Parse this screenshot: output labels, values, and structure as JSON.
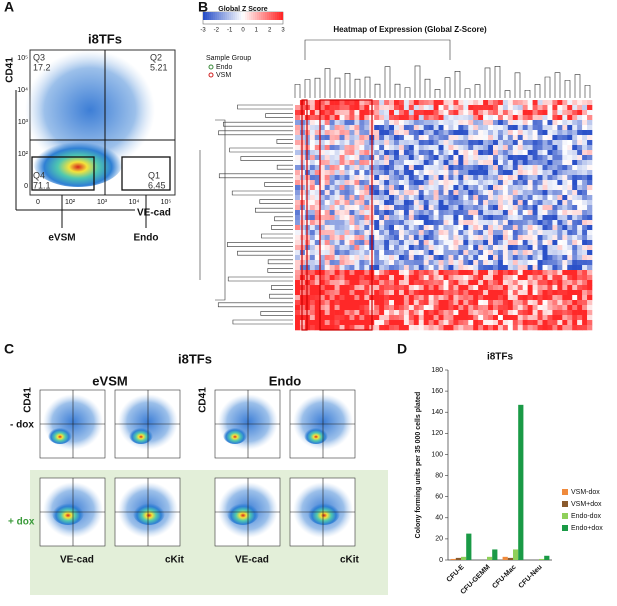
{
  "panels": {
    "a": {
      "letter": "A",
      "title": "i8TFs",
      "y_label": "CD41",
      "x_label": "VE-cad",
      "gates": [
        "eVSM",
        "Endo"
      ],
      "quadrants": [
        {
          "name": "Q3",
          "value": "17.2"
        },
        {
          "name": "Q2",
          "value": "5.21"
        },
        {
          "name": "Q4",
          "value": "71.1"
        },
        {
          "name": "Q1",
          "value": "6.45"
        }
      ],
      "yticks": [
        "10⁵",
        "10⁴",
        "10³",
        "10²",
        "0"
      ],
      "xticks": [
        "0",
        "10²",
        "10³",
        "10⁴",
        "10⁵"
      ]
    },
    "b": {
      "letter": "B",
      "colorbar_title": "Global Z Score",
      "colorbar_ticks": [
        -3,
        -2,
        -1,
        0,
        1,
        2,
        3
      ],
      "title": "Heatmap of Expression (Global Z-Score)",
      "legend_title": "Sample Group",
      "groups": [
        "Endo",
        "VSM"
      ]
    },
    "c": {
      "letter": "C",
      "title": "i8TFs",
      "columns": [
        "eVSM",
        "Endo"
      ],
      "rows": [
        "- dox",
        "+ dox"
      ],
      "y_label": "CD41",
      "x_labels": [
        "VE-cad",
        "cKit"
      ]
    },
    "d": {
      "letter": "D"
    }
  },
  "chart_data": {
    "type": "bar",
    "title": "i8TFs",
    "y_label": "Colony forming units per 35 000 cells plated",
    "categories": [
      "CFU-E",
      "CFU-GEMM",
      "CFU-Mac",
      "CFU-Neu"
    ],
    "series": [
      {
        "name": "VSM-dox",
        "color": "#f08a3c",
        "values": [
          1,
          0,
          3,
          0
        ]
      },
      {
        "name": "VSM+dox",
        "color": "#8a5a2e",
        "values": [
          2,
          0,
          2,
          0
        ]
      },
      {
        "name": "Endo-dox",
        "color": "#8fd05a",
        "values": [
          3,
          3,
          10,
          1
        ]
      },
      {
        "name": "Endo+dox",
        "color": "#1a9a46",
        "values": [
          25,
          10,
          147,
          4
        ]
      }
    ],
    "ylim": [
      0,
      180
    ],
    "yticks": [
      0,
      20,
      40,
      60,
      80,
      100,
      120,
      140,
      160,
      180
    ],
    "legend": "right"
  }
}
